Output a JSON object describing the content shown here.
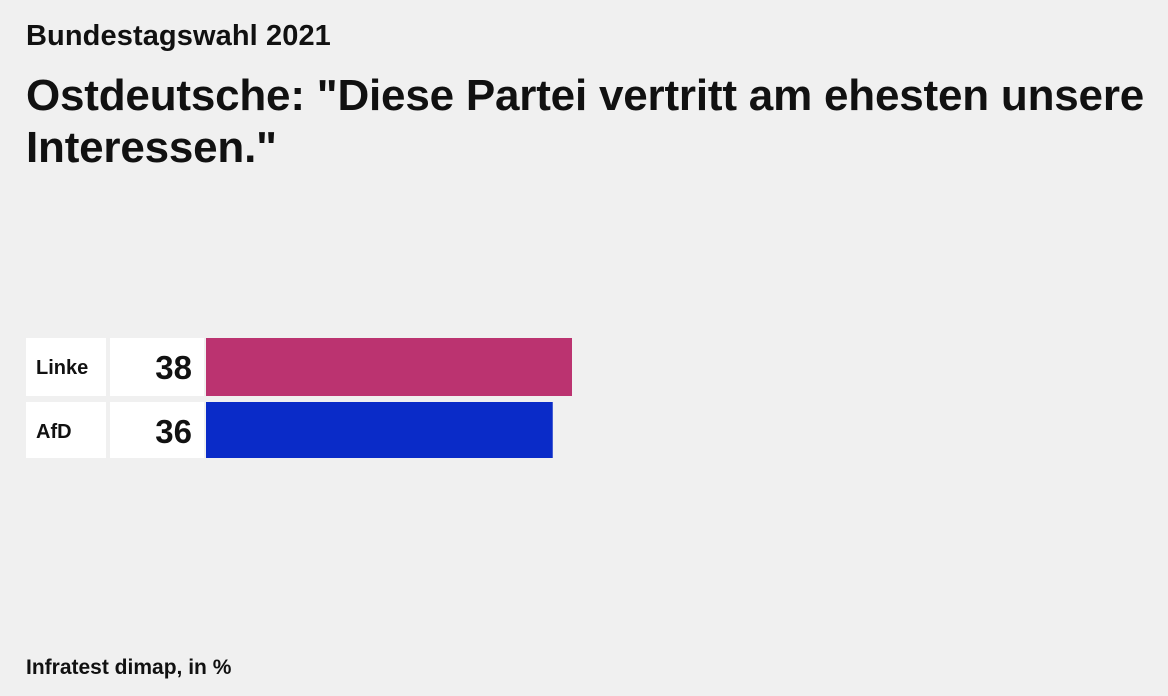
{
  "header": {
    "kicker": "Bundestagswahl 2021",
    "title": "Ostdeutsche: \"Diese Partei vertritt am ehesten unsere Interessen.\""
  },
  "footer": {
    "source": "Infratest dimap, in %"
  },
  "chart_data": {
    "type": "bar",
    "orientation": "horizontal",
    "categories": [
      "Linke",
      "AfD"
    ],
    "values": [
      38,
      36
    ],
    "colors": [
      "#bb3370",
      "#0a2bc8"
    ],
    "title": "",
    "xlabel": "",
    "ylabel": "",
    "xlim": [
      0,
      38
    ],
    "grid": false,
    "legend": "none"
  }
}
